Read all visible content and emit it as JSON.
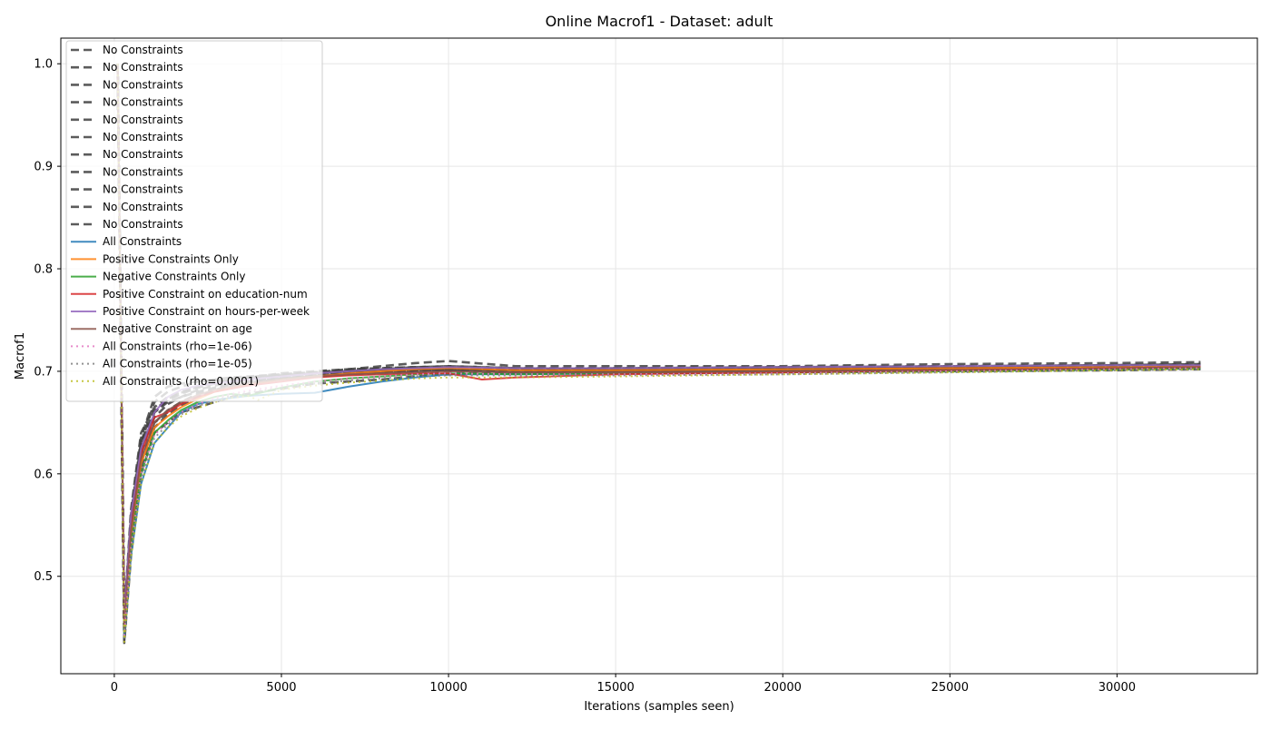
{
  "chart_data": {
    "type": "line",
    "title": "Online Macrof1 - Dataset: adult",
    "xlabel": "Iterations (samples seen)",
    "ylabel": "Macrof1",
    "xlim": [
      -1600,
      34200
    ],
    "ylim": [
      0.405,
      1.025
    ],
    "xticks": [
      0,
      5000,
      10000,
      15000,
      20000,
      25000,
      30000
    ],
    "yticks": [
      0.5,
      0.6,
      0.7,
      0.8,
      0.9,
      1.0
    ],
    "grid": true,
    "legend_position": "upper left",
    "series": [
      {
        "name": "No Constraints",
        "color": "#404040",
        "dash": "dashed",
        "x": [
          100,
          300,
          500,
          800,
          1200,
          1600,
          2000,
          2500,
          3000,
          3500,
          4000,
          5000,
          6000,
          7000,
          8000,
          9000,
          10000,
          12000,
          15000,
          20000,
          25000,
          30000,
          32500
        ],
        "y": [
          1.0,
          0.435,
          0.52,
          0.6,
          0.64,
          0.65,
          0.66,
          0.665,
          0.67,
          0.675,
          0.678,
          0.683,
          0.688,
          0.69,
          0.692,
          0.695,
          0.697,
          0.698,
          0.7,
          0.701,
          0.702,
          0.703,
          0.704
        ]
      },
      {
        "name": "No Constraints",
        "color": "#404040",
        "dash": "dashed",
        "x": [
          100,
          300,
          500,
          800,
          1200,
          1600,
          2000,
          2500,
          3000,
          3500,
          4000,
          5000,
          6000,
          7000,
          8000,
          9000,
          10000,
          12000,
          15000,
          20000,
          25000,
          30000,
          32500
        ],
        "y": [
          1.0,
          0.44,
          0.53,
          0.61,
          0.65,
          0.66,
          0.67,
          0.675,
          0.682,
          0.686,
          0.689,
          0.694,
          0.697,
          0.699,
          0.7,
          0.701,
          0.702,
          0.702,
          0.703,
          0.704,
          0.705,
          0.706,
          0.706
        ]
      },
      {
        "name": "No Constraints",
        "color": "#404040",
        "dash": "dashed",
        "x": [
          100,
          300,
          500,
          800,
          1200,
          1600,
          2000,
          2500,
          3000,
          3500,
          4000,
          5000,
          6000,
          7000,
          8000,
          9000,
          10000,
          12000,
          15000,
          20000,
          25000,
          30000,
          32500
        ],
        "y": [
          1.0,
          0.445,
          0.54,
          0.62,
          0.66,
          0.67,
          0.675,
          0.68,
          0.684,
          0.688,
          0.69,
          0.693,
          0.695,
          0.697,
          0.699,
          0.7,
          0.701,
          0.7,
          0.701,
          0.702,
          0.703,
          0.704,
          0.705
        ]
      },
      {
        "name": "No Constraints",
        "color": "#404040",
        "dash": "dashed",
        "x": [
          100,
          300,
          500,
          800,
          1200,
          1600,
          2000,
          2500,
          3000,
          3500,
          4000,
          5000,
          6000,
          7000,
          8000,
          9000,
          10000,
          12000,
          15000,
          20000,
          25000,
          30000,
          32500
        ],
        "y": [
          1.0,
          0.45,
          0.55,
          0.63,
          0.67,
          0.68,
          0.685,
          0.69,
          0.692,
          0.694,
          0.695,
          0.697,
          0.699,
          0.702,
          0.705,
          0.708,
          0.71,
          0.705,
          0.705,
          0.705,
          0.707,
          0.708,
          0.709
        ]
      },
      {
        "name": "No Constraints",
        "color": "#404040",
        "dash": "dashed",
        "x": [
          100,
          300,
          500,
          800,
          1200,
          1600,
          2000,
          2500,
          3000,
          3500,
          4000,
          5000,
          6000,
          7000,
          8000,
          9000,
          10000,
          12000,
          15000,
          20000,
          25000,
          30000,
          32500
        ],
        "y": [
          1.0,
          0.455,
          0.56,
          0.635,
          0.675,
          0.685,
          0.688,
          0.69,
          0.691,
          0.693,
          0.694,
          0.696,
          0.698,
          0.7,
          0.702,
          0.704,
          0.705,
          0.703,
          0.702,
          0.703,
          0.704,
          0.706,
          0.707
        ]
      },
      {
        "name": "No Constraints",
        "color": "#404040",
        "dash": "dashed",
        "x": [
          100,
          300,
          500,
          800,
          1200,
          1600,
          2000,
          2500,
          3000,
          3500,
          4000,
          5000,
          6000,
          7000,
          8000,
          9000,
          10000,
          12000,
          15000,
          20000,
          25000,
          30000,
          32500
        ],
        "y": [
          1.0,
          0.46,
          0.565,
          0.64,
          0.665,
          0.675,
          0.68,
          0.685,
          0.689,
          0.692,
          0.694,
          0.697,
          0.699,
          0.701,
          0.702,
          0.703,
          0.703,
          0.701,
          0.701,
          0.702,
          0.703,
          0.704,
          0.705
        ]
      },
      {
        "name": "No Constraints",
        "color": "#404040",
        "dash": "dashed",
        "x": [
          100,
          300,
          500,
          800,
          1200,
          1600,
          2000,
          2500,
          3000,
          3500,
          4000,
          5000,
          6000,
          7000,
          8000,
          9000,
          10000,
          12000,
          15000,
          20000,
          25000,
          30000,
          32500
        ],
        "y": [
          1.0,
          0.448,
          0.545,
          0.625,
          0.655,
          0.668,
          0.675,
          0.682,
          0.686,
          0.689,
          0.692,
          0.696,
          0.698,
          0.7,
          0.701,
          0.702,
          0.702,
          0.7,
          0.7,
          0.701,
          0.702,
          0.703,
          0.704
        ]
      },
      {
        "name": "No Constraints",
        "color": "#404040",
        "dash": "dashed",
        "x": [
          100,
          300,
          500,
          800,
          1200,
          1600,
          2000,
          2500,
          3000,
          3500,
          4000,
          5000,
          6000,
          7000,
          8000,
          9000,
          10000,
          12000,
          15000,
          20000,
          25000,
          30000,
          32500
        ],
        "y": [
          1.0,
          0.442,
          0.535,
          0.615,
          0.65,
          0.662,
          0.67,
          0.678,
          0.683,
          0.687,
          0.69,
          0.695,
          0.697,
          0.699,
          0.7,
          0.701,
          0.701,
          0.699,
          0.699,
          0.7,
          0.701,
          0.702,
          0.703
        ]
      },
      {
        "name": "No Constraints",
        "color": "#404040",
        "dash": "dashed",
        "x": [
          100,
          300,
          500,
          800,
          1200,
          1600,
          2000,
          2500,
          3000,
          3500,
          4000,
          5000,
          6000,
          7000,
          8000,
          9000,
          10000,
          12000,
          15000,
          20000,
          25000,
          30000,
          32500
        ],
        "y": [
          1.0,
          0.452,
          0.55,
          0.628,
          0.66,
          0.672,
          0.678,
          0.684,
          0.688,
          0.691,
          0.693,
          0.697,
          0.699,
          0.701,
          0.703,
          0.704,
          0.705,
          0.703,
          0.703,
          0.704,
          0.705,
          0.706,
          0.707
        ]
      },
      {
        "name": "No Constraints",
        "color": "#404040",
        "dash": "dashed",
        "x": [
          100,
          300,
          500,
          800,
          1200,
          1600,
          2000,
          2500,
          3000,
          3500,
          4000,
          5000,
          6000,
          7000,
          8000,
          9000,
          10000,
          12000,
          15000,
          20000,
          25000,
          30000,
          32500
        ],
        "y": [
          1.0,
          0.438,
          0.528,
          0.605,
          0.645,
          0.658,
          0.667,
          0.675,
          0.68,
          0.685,
          0.688,
          0.693,
          0.695,
          0.697,
          0.698,
          0.699,
          0.7,
          0.698,
          0.698,
          0.699,
          0.7,
          0.701,
          0.702
        ]
      },
      {
        "name": "No Constraints",
        "color": "#404040",
        "dash": "dashed",
        "x": [
          100,
          300,
          500,
          800,
          1200,
          1600,
          2000,
          2500,
          3000,
          3500,
          4000,
          5000,
          6000,
          7000,
          8000,
          9000,
          10000,
          12000,
          15000,
          20000,
          25000,
          30000,
          32500
        ],
        "y": [
          1.0,
          0.458,
          0.558,
          0.632,
          0.662,
          0.673,
          0.679,
          0.685,
          0.689,
          0.692,
          0.694,
          0.698,
          0.7,
          0.702,
          0.703,
          0.704,
          0.704,
          0.702,
          0.702,
          0.703,
          0.704,
          0.705,
          0.706
        ]
      },
      {
        "name": "All Constraints",
        "color": "#1f77b4",
        "dash": "solid",
        "x": [
          100,
          300,
          500,
          800,
          1200,
          1600,
          2000,
          2500,
          3000,
          3500,
          4000,
          5000,
          6000,
          7000,
          8000,
          9000,
          10000,
          12000,
          15000,
          20000,
          25000,
          30000,
          32500
        ],
        "y": [
          1.0,
          0.44,
          0.52,
          0.59,
          0.63,
          0.645,
          0.66,
          0.668,
          0.672,
          0.674,
          0.676,
          0.678,
          0.679,
          0.685,
          0.69,
          0.694,
          0.697,
          0.697,
          0.698,
          0.699,
          0.701,
          0.702,
          0.703
        ]
      },
      {
        "name": "Positive Constraints Only",
        "color": "#ff7f0e",
        "dash": "solid",
        "x": [
          100,
          300,
          500,
          800,
          1200,
          1600,
          2000,
          2500,
          3000,
          3500,
          4000,
          5000,
          6000,
          7000,
          8000,
          9000,
          10000,
          12000,
          15000,
          20000,
          25000,
          30000,
          32500
        ],
        "y": [
          1.0,
          0.45,
          0.54,
          0.61,
          0.645,
          0.656,
          0.665,
          0.673,
          0.68,
          0.684,
          0.687,
          0.692,
          0.695,
          0.698,
          0.7,
          0.702,
          0.703,
          0.701,
          0.701,
          0.702,
          0.703,
          0.704,
          0.705
        ]
      },
      {
        "name": "Negative Constraints Only",
        "color": "#2ca02c",
        "dash": "solid",
        "x": [
          100,
          300,
          500,
          800,
          1200,
          1600,
          2000,
          2500,
          3000,
          3500,
          4000,
          5000,
          6000,
          7000,
          8000,
          9000,
          10000,
          12000,
          15000,
          20000,
          25000,
          30000,
          32500
        ],
        "y": [
          1.0,
          0.445,
          0.53,
          0.6,
          0.64,
          0.652,
          0.662,
          0.67,
          0.675,
          0.678,
          0.676,
          0.684,
          0.69,
          0.693,
          0.695,
          0.697,
          0.698,
          0.697,
          0.698,
          0.699,
          0.7,
          0.702,
          0.703
        ]
      },
      {
        "name": "Positive Constraint on education-num",
        "color": "#d62728",
        "dash": "solid",
        "x": [
          100,
          300,
          500,
          800,
          1200,
          1600,
          2000,
          2500,
          3000,
          3500,
          4000,
          5000,
          6000,
          7000,
          8000,
          9000,
          10000,
          11000,
          12000,
          15000,
          20000,
          25000,
          30000,
          32500
        ],
        "y": [
          1.0,
          0.455,
          0.55,
          0.62,
          0.655,
          0.66,
          0.668,
          0.675,
          0.68,
          0.683,
          0.686,
          0.69,
          0.694,
          0.696,
          0.697,
          0.698,
          0.698,
          0.692,
          0.694,
          0.697,
          0.699,
          0.701,
          0.703,
          0.704
        ]
      },
      {
        "name": "Positive Constraint on hours-per-week",
        "color": "#9467bd",
        "dash": "solid",
        "x": [
          100,
          300,
          500,
          800,
          1200,
          1600,
          2000,
          2500,
          3000,
          3500,
          4000,
          5000,
          6000,
          7000,
          8000,
          9000,
          10000,
          12000,
          15000,
          20000,
          25000,
          30000,
          32500
        ],
        "y": [
          1.0,
          0.46,
          0.56,
          0.625,
          0.66,
          0.675,
          0.682,
          0.686,
          0.688,
          0.69,
          0.692,
          0.695,
          0.698,
          0.7,
          0.702,
          0.703,
          0.704,
          0.703,
          0.703,
          0.704,
          0.705,
          0.706,
          0.706
        ]
      },
      {
        "name": "Negative Constraint on age",
        "color": "#8c564b",
        "dash": "solid",
        "x": [
          100,
          300,
          500,
          800,
          1200,
          1600,
          2000,
          2500,
          3000,
          3500,
          4000,
          5000,
          6000,
          7000,
          8000,
          9000,
          10000,
          12000,
          15000,
          20000,
          25000,
          30000,
          32500
        ],
        "y": [
          1.0,
          0.45,
          0.545,
          0.615,
          0.65,
          0.662,
          0.67,
          0.677,
          0.682,
          0.685,
          0.688,
          0.692,
          0.695,
          0.697,
          0.698,
          0.699,
          0.7,
          0.699,
          0.699,
          0.7,
          0.701,
          0.703,
          0.704
        ]
      },
      {
        "name": "All Constraints (rho=1e-06)",
        "color": "#e377c2",
        "dash": "dotted",
        "x": [
          100,
          300,
          500,
          800,
          1200,
          1600,
          2000,
          2500,
          3000,
          3500,
          4000,
          5000,
          6000,
          7000,
          8000,
          9000,
          10000,
          12000,
          15000,
          20000,
          25000,
          30000,
          32500
        ],
        "y": [
          1.0,
          0.442,
          0.528,
          0.6,
          0.638,
          0.65,
          0.66,
          0.668,
          0.674,
          0.678,
          0.681,
          0.686,
          0.69,
          0.693,
          0.695,
          0.697,
          0.698,
          0.697,
          0.697,
          0.698,
          0.7,
          0.702,
          0.703
        ]
      },
      {
        "name": "All Constraints (rho=1e-05)",
        "color": "#7f7f7f",
        "dash": "dotted",
        "x": [
          100,
          300,
          500,
          800,
          1200,
          1600,
          2000,
          2500,
          3000,
          3500,
          4000,
          5000,
          6000,
          7000,
          8000,
          9000,
          10000,
          12000,
          15000,
          20000,
          25000,
          30000,
          32500
        ],
        "y": [
          1.0,
          0.438,
          0.522,
          0.595,
          0.635,
          0.648,
          0.658,
          0.666,
          0.672,
          0.676,
          0.679,
          0.684,
          0.688,
          0.691,
          0.693,
          0.695,
          0.696,
          0.696,
          0.696,
          0.697,
          0.699,
          0.701,
          0.702
        ]
      },
      {
        "name": "All Constraints (rho=0.0001)",
        "color": "#bcbd22",
        "dash": "dotted",
        "x": [
          100,
          300,
          500,
          800,
          1200,
          1600,
          2000,
          2500,
          3000,
          3500,
          4000,
          4300,
          5000,
          6000,
          7000,
          8000,
          9000,
          10000,
          12000,
          15000,
          20000,
          25000,
          30000,
          32500
        ],
        "y": [
          1.0,
          0.436,
          0.518,
          0.59,
          0.63,
          0.645,
          0.656,
          0.664,
          0.67,
          0.674,
          0.676,
          0.672,
          0.682,
          0.686,
          0.689,
          0.691,
          0.693,
          0.694,
          0.694,
          0.695,
          0.697,
          0.699,
          0.701,
          0.702
        ]
      }
    ]
  }
}
